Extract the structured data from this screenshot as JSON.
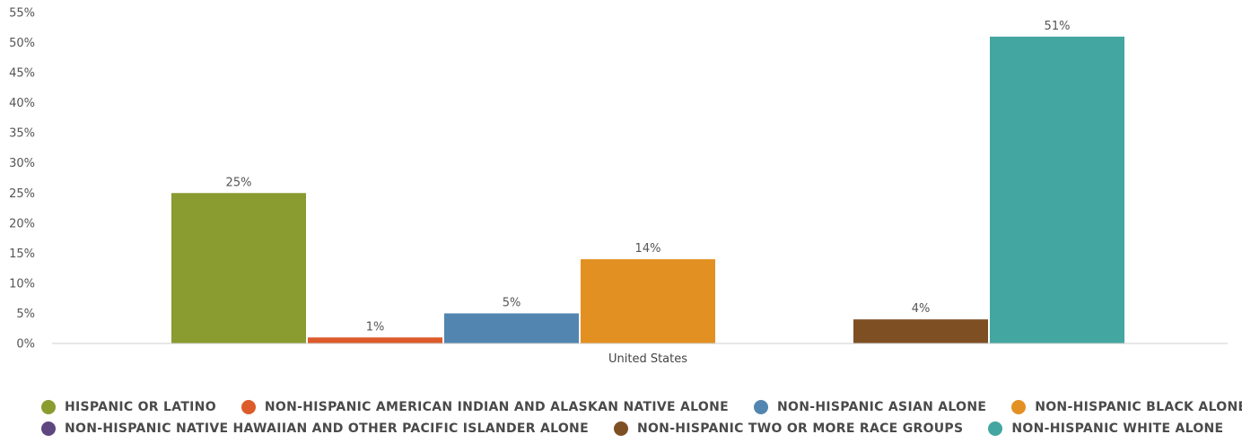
{
  "chart_data": {
    "type": "bar",
    "categories": [
      "United States"
    ],
    "series": [
      {
        "name": "HISPANIC OR LATINO",
        "values": [
          25
        ],
        "color": "#8a9b2f"
      },
      {
        "name": "NON-HISPANIC AMERICAN INDIAN AND ALASKAN NATIVE ALONE",
        "values": [
          1
        ],
        "color": "#dd5b2a"
      },
      {
        "name": "NON-HISPANIC ASIAN ALONE",
        "values": [
          5
        ],
        "color": "#5286b0"
      },
      {
        "name": "NON-HISPANIC BLACK ALONE",
        "values": [
          14
        ],
        "color": "#e39023"
      },
      {
        "name": "NON-HISPANIC NATIVE HAWAIIAN AND OTHER PACIFIC ISLANDER ALONE",
        "values": [
          0
        ],
        "color": "#5e4680"
      },
      {
        "name": "NON-HISPANIC TWO OR MORE RACE GROUPS",
        "values": [
          4
        ],
        "color": "#7f4f24"
      },
      {
        "name": "NON-HISPANIC WHITE ALONE",
        "values": [
          51
        ],
        "color": "#43a6a0"
      }
    ],
    "data_labels": [
      "25%",
      "1%",
      "5%",
      "14%",
      "",
      "4%",
      "51%"
    ],
    "y_ticks": [
      "0%",
      "5%",
      "10%",
      "15%",
      "20%",
      "25%",
      "30%",
      "35%",
      "40%",
      "45%",
      "50%",
      "55%"
    ],
    "ylim": [
      0,
      55
    ],
    "grid": false,
    "legend_position": "bottom",
    "legend_rows": [
      [
        0,
        1,
        2,
        3
      ],
      [
        4,
        5,
        6
      ]
    ]
  }
}
